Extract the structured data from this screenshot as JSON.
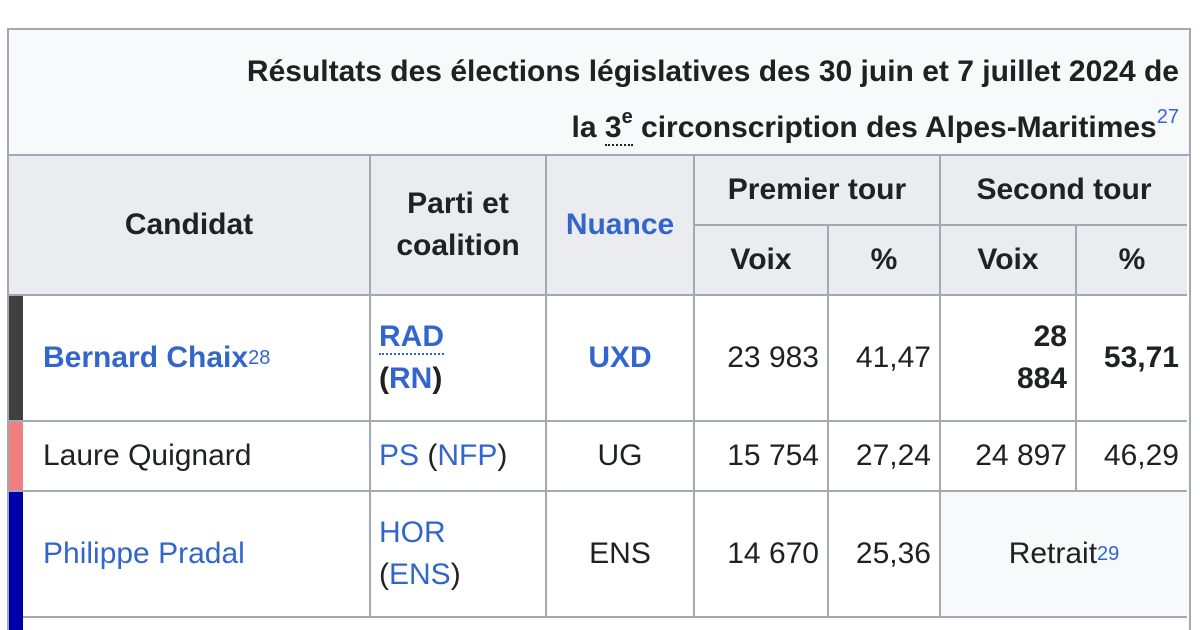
{
  "caption": {
    "line1": "Résultats des élections législatives des 30 juin et 7 juillet 2024 de",
    "line2_pre": "la ",
    "ordinal_number": "3",
    "ordinal_suffix": "e",
    "line2_post": " circonscription des Alpes-Maritimes",
    "ref": "27"
  },
  "headers": {
    "candidat": "Candidat",
    "parti_line1": "Parti et",
    "parti_line2": "coalition",
    "nuance": "Nuance",
    "premier_tour": "Premier tour",
    "second_tour": "Second tour",
    "voix": "Voix",
    "pct": "%"
  },
  "rows": [
    {
      "color": "#404040",
      "name": "Bernard Chaix",
      "name_ref": "28",
      "party": "RAD",
      "coalition": "RN",
      "nuance": "UXD",
      "t1_voix": "23 983",
      "t1_pct": "41,47",
      "t2_voix_line1": "28",
      "t2_voix_line2": "884",
      "t2_pct": "53,71"
    },
    {
      "color": "#f08080",
      "name": "Laure Quignard",
      "party": "PS",
      "coalition": "NFP",
      "nuance": "UG",
      "t1_voix": "15 754",
      "t1_pct": "27,24",
      "t2_voix": "24 897",
      "t2_pct": "46,29"
    },
    {
      "color": "#0000aa",
      "name": "Philippe Pradal",
      "party": "HOR",
      "coalition": "ENS",
      "nuance": "ENS",
      "t1_voix": "14 670",
      "t1_pct": "25,36",
      "t2_status": "Retrait",
      "t2_ref": "29"
    }
  ]
}
